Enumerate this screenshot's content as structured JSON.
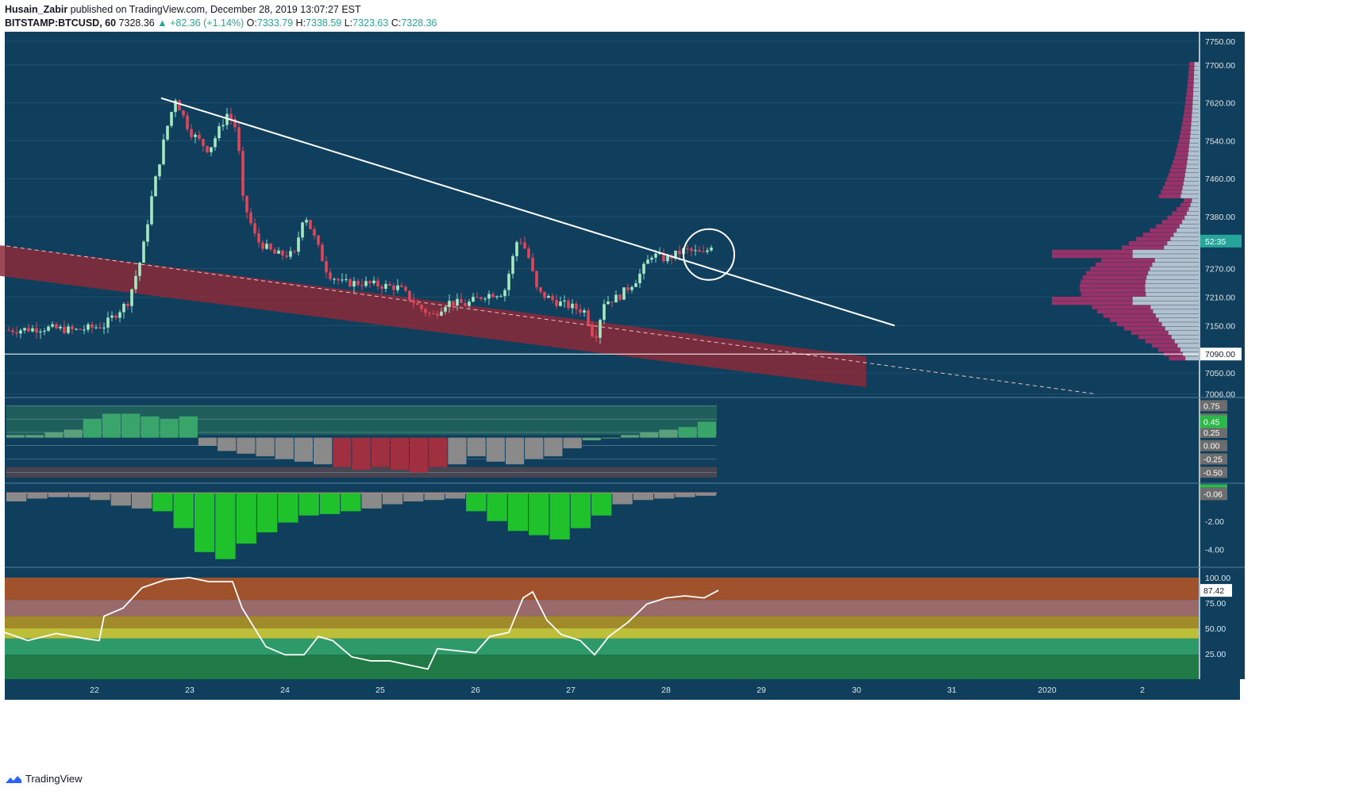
{
  "header": {
    "author": "Husain_Zabir",
    "published_text": "published on TradingView.com, December 28, 2019 13:07:27 EST",
    "symbol": "BITSTAMP:BTCUSD, 60",
    "last": "7328.36",
    "change": "▲ +82.36 (+1.14%)",
    "o_label": "O:",
    "o": "7333.79",
    "h_label": "H:",
    "h": "7338.59",
    "l_label": "L:",
    "l": "7323.63",
    "c_label": "C:",
    "c": "7328.36"
  },
  "footer": {
    "brand": "TradingView",
    "icon": "tradingview-logo-icon"
  },
  "colors": {
    "background": "#0f3f5c",
    "grid": "#2a5875",
    "up": "#26a69a",
    "down": "#ef5350",
    "channel": "#8b2a3a",
    "trendline": "#ffffff",
    "price_tag": "#26a69a"
  },
  "chart_data": [
    {
      "type": "candlestick",
      "title": "BITSTAMP:BTCUSD, 60",
      "x_tick_labels": [
        "22",
        "23",
        "24",
        "25",
        "26",
        "27",
        "28",
        "29",
        "30",
        "31",
        "2020",
        "2"
      ],
      "y_tick_labels": [
        "7750.00",
        "7700.00",
        "7620.00",
        "7540.00",
        "7460.00",
        "7380.00",
        "7270.00",
        "7210.00",
        "7150.00",
        "7050.00",
        "7006.00"
      ],
      "ylim": [
        7000,
        7770
      ],
      "last_price": 7328.36,
      "countdown_label": "52:35",
      "horizontal_line": {
        "value": 7090,
        "label": "7090.00"
      },
      "close_path": [
        {
          "x": 21.1,
          "y": 7140
        },
        {
          "x": 21.5,
          "y": 7145
        },
        {
          "x": 21.8,
          "y": 7140
        },
        {
          "x": 22.1,
          "y": 7150
        },
        {
          "x": 22.35,
          "y": 7200
        },
        {
          "x": 22.5,
          "y": 7300
        },
        {
          "x": 22.6,
          "y": 7420
        },
        {
          "x": 22.75,
          "y": 7560
        },
        {
          "x": 22.85,
          "y": 7630
        },
        {
          "x": 23.0,
          "y": 7560
        },
        {
          "x": 23.2,
          "y": 7520
        },
        {
          "x": 23.4,
          "y": 7600
        },
        {
          "x": 23.5,
          "y": 7560
        },
        {
          "x": 23.55,
          "y": 7420
        },
        {
          "x": 23.7,
          "y": 7330
        },
        {
          "x": 23.9,
          "y": 7300
        },
        {
          "x": 24.1,
          "y": 7300
        },
        {
          "x": 24.2,
          "y": 7390
        },
        {
          "x": 24.3,
          "y": 7340
        },
        {
          "x": 24.45,
          "y": 7260
        },
        {
          "x": 24.6,
          "y": 7240
        },
        {
          "x": 24.8,
          "y": 7240
        },
        {
          "x": 25.0,
          "y": 7235
        },
        {
          "x": 25.2,
          "y": 7230
        },
        {
          "x": 25.4,
          "y": 7190
        },
        {
          "x": 25.55,
          "y": 7170
        },
        {
          "x": 25.7,
          "y": 7200
        },
        {
          "x": 25.9,
          "y": 7195
        },
        {
          "x": 26.1,
          "y": 7215
        },
        {
          "x": 26.3,
          "y": 7220
        },
        {
          "x": 26.45,
          "y": 7340
        },
        {
          "x": 26.55,
          "y": 7300
        },
        {
          "x": 26.65,
          "y": 7220
        },
        {
          "x": 26.85,
          "y": 7200
        },
        {
          "x": 27.0,
          "y": 7190
        },
        {
          "x": 27.15,
          "y": 7180
        },
        {
          "x": 27.25,
          "y": 7120
        },
        {
          "x": 27.35,
          "y": 7200
        },
        {
          "x": 27.5,
          "y": 7210
        },
        {
          "x": 27.7,
          "y": 7250
        },
        {
          "x": 27.85,
          "y": 7300
        },
        {
          "x": 28.0,
          "y": 7290
        },
        {
          "x": 28.2,
          "y": 7310
        },
        {
          "x": 28.4,
          "y": 7300
        },
        {
          "x": 28.5,
          "y": 7328
        }
      ],
      "descending_trendline": [
        {
          "x": 22.7,
          "y": 7630
        },
        {
          "x": 30.4,
          "y": 7150
        }
      ],
      "descending_channel": {
        "upper": [
          {
            "x": 21.0,
            "y": 7320
          },
          {
            "x": 30.1,
            "y": 7085
          }
        ],
        "lower": [
          {
            "x": 21.0,
            "y": 7255
          },
          {
            "x": 30.1,
            "y": 7020
          }
        ]
      },
      "dashed_support": [
        {
          "x": 21.0,
          "y": 7320
        },
        {
          "x": 32.5,
          "y": 7006
        }
      ],
      "circle_annotation": {
        "x": 28.45,
        "y": 7300
      },
      "volume_profile": "right-side horizontal histogram from 7070 to 7700"
    },
    {
      "type": "bar",
      "title": "",
      "y_tick_labels": [
        "0.75",
        "0.50",
        "0.25",
        "0.00",
        "-0.25",
        "-0.50"
      ],
      "last_label": "0.45",
      "ylim": [
        -0.6,
        0.8
      ],
      "values": [
        0.2,
        0.2,
        0.25,
        0.3,
        0.5,
        0.6,
        0.6,
        0.55,
        0.5,
        0.55,
        0.0,
        -0.1,
        -0.15,
        -0.2,
        -0.25,
        -0.3,
        -0.35,
        -0.4,
        -0.45,
        -0.4,
        -0.45,
        -0.5,
        -0.4,
        -0.35,
        -0.2,
        -0.3,
        -0.35,
        -0.25,
        -0.2,
        -0.05,
        0.1,
        0.15,
        0.2,
        0.25,
        0.3,
        0.35,
        0.45
      ]
    },
    {
      "type": "bar",
      "title": "",
      "y_tick_labels": [
        "-0.06",
        "-2.00",
        "-4.00"
      ],
      "last_label": "-0.06",
      "ylim": [
        -5.0,
        0.3
      ],
      "values": [
        -0.6,
        -0.4,
        -0.3,
        -0.3,
        -0.5,
        -0.9,
        -1.1,
        -1.3,
        -2.5,
        -4.2,
        -4.7,
        -3.6,
        -2.8,
        -2.1,
        -1.6,
        -1.5,
        -1.3,
        -1.1,
        -0.8,
        -0.6,
        -0.5,
        -0.4,
        -1.3,
        -2.0,
        -2.7,
        -3.0,
        -3.3,
        -2.5,
        -1.6,
        -0.8,
        -0.5,
        -0.4,
        -0.3,
        -0.2
      ]
    },
    {
      "type": "line",
      "title": "",
      "y_tick_labels": [
        "100.00",
        "75.00",
        "50.00",
        "25.00"
      ],
      "last_label": "87.42",
      "ylim": [
        0,
        100
      ],
      "points": [
        {
          "x": 21.0,
          "y": 48
        },
        {
          "x": 21.3,
          "y": 38
        },
        {
          "x": 21.6,
          "y": 45
        },
        {
          "x": 21.9,
          "y": 40
        },
        {
          "x": 22.05,
          "y": 38
        },
        {
          "x": 22.1,
          "y": 62
        },
        {
          "x": 22.3,
          "y": 70
        },
        {
          "x": 22.5,
          "y": 90
        },
        {
          "x": 22.75,
          "y": 98
        },
        {
          "x": 23.0,
          "y": 100
        },
        {
          "x": 23.2,
          "y": 96
        },
        {
          "x": 23.45,
          "y": 96
        },
        {
          "x": 23.55,
          "y": 70
        },
        {
          "x": 23.8,
          "y": 32
        },
        {
          "x": 24.0,
          "y": 24
        },
        {
          "x": 24.2,
          "y": 24
        },
        {
          "x": 24.35,
          "y": 42
        },
        {
          "x": 24.5,
          "y": 38
        },
        {
          "x": 24.7,
          "y": 22
        },
        {
          "x": 24.9,
          "y": 18
        },
        {
          "x": 25.1,
          "y": 18
        },
        {
          "x": 25.3,
          "y": 14
        },
        {
          "x": 25.5,
          "y": 10
        },
        {
          "x": 25.6,
          "y": 30
        },
        {
          "x": 25.8,
          "y": 28
        },
        {
          "x": 26.0,
          "y": 26
        },
        {
          "x": 26.15,
          "y": 42
        },
        {
          "x": 26.35,
          "y": 46
        },
        {
          "x": 26.5,
          "y": 80
        },
        {
          "x": 26.6,
          "y": 86
        },
        {
          "x": 26.75,
          "y": 58
        },
        {
          "x": 26.9,
          "y": 44
        },
        {
          "x": 27.1,
          "y": 38
        },
        {
          "x": 27.25,
          "y": 24
        },
        {
          "x": 27.4,
          "y": 42
        },
        {
          "x": 27.6,
          "y": 56
        },
        {
          "x": 27.8,
          "y": 74
        },
        {
          "x": 28.0,
          "y": 80
        },
        {
          "x": 28.2,
          "y": 82
        },
        {
          "x": 28.4,
          "y": 80
        },
        {
          "x": 28.55,
          "y": 87.42
        }
      ],
      "bands": [
        {
          "from": 78,
          "to": 100,
          "color": "#a0522d"
        },
        {
          "from": 62,
          "to": 78,
          "color": "#9a6a6a"
        },
        {
          "from": 50,
          "to": 62,
          "color": "#a08a2a"
        },
        {
          "from": 40,
          "to": 50,
          "color": "#bdbf3a"
        },
        {
          "from": 24,
          "to": 40,
          "color": "#2e9a6a"
        },
        {
          "from": 0,
          "to": 24,
          "color": "#1f7a45"
        }
      ]
    }
  ]
}
